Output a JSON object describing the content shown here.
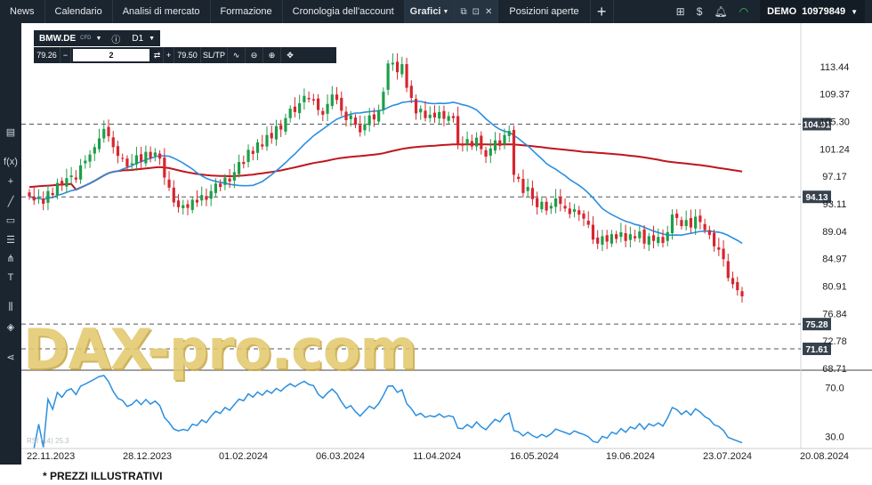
{
  "nav": {
    "tabs": [
      {
        "label": "News"
      },
      {
        "label": "Calendario"
      },
      {
        "label": "Analisi di mercato"
      },
      {
        "label": "Formazione"
      },
      {
        "label": "Cronologia dell'account"
      },
      {
        "label": "Grafici"
      },
      {
        "label": "Posizioni aperte"
      }
    ],
    "account_mode": "DEMO",
    "account_number": "10979849"
  },
  "instrument": {
    "symbol": "BMW.DE",
    "type_badge": "CFD",
    "timeframe": "D1",
    "sell_price": "79.26",
    "volume": "2",
    "buy_price": "79.50",
    "sltp_label": "SL/TP"
  },
  "watermark_text": "DAX-pro.com",
  "footnote": "* PREZZI ILLUSTRATIVI",
  "chart_data": {
    "type": "candlestick",
    "symbol": "BMW.DE",
    "timeframe": "D1",
    "price_axis_ticks": [
      "113.44",
      "109.37",
      "105.30",
      "101.24",
      "97.17",
      "93.11",
      "89.04",
      "84.97",
      "80.91",
      "76.84",
      "72.78",
      "68.71"
    ],
    "ylim": [
      68.71,
      117.5
    ],
    "date_ticks": [
      "22.11.2023",
      "28.12.2023",
      "01.02.2024",
      "06.03.2024",
      "11.04.2024",
      "16.05.2024",
      "19.06.2024",
      "23.07.2024",
      "20.08.2024"
    ],
    "horizontal_levels": [
      {
        "value": 104.91,
        "label": "104.91"
      },
      {
        "value": 94.13,
        "label": "94.13"
      },
      {
        "value": 75.28,
        "label": "75.28"
      },
      {
        "value": 71.61,
        "label": "71.61"
      }
    ],
    "colors": {
      "up": "#1e9e4a",
      "down": "#d6262e",
      "ma_fast": "#2a8fe0",
      "ma_slow": "#c0161d",
      "rsi": "#2a8fe0"
    },
    "closes": [
      94.2,
      93.6,
      94.0,
      93.1,
      95.0,
      94.4,
      96.2,
      95.8,
      96.9,
      97.3,
      96.7,
      98.8,
      99.5,
      100.4,
      101.5,
      102.8,
      104.2,
      103.1,
      101.5,
      100.2,
      99.8,
      98.6,
      99.1,
      100.3,
      99.4,
      100.8,
      99.9,
      100.7,
      99.8,
      97.0,
      95.5,
      93.3,
      92.6,
      92.9,
      92.5,
      93.7,
      93.3,
      94.4,
      93.7,
      95.0,
      96.1,
      95.6,
      97.0,
      96.4,
      97.8,
      99.3,
      99.0,
      101.1,
      100.5,
      102.2,
      101.6,
      103.3,
      102.8,
      104.6,
      104.1,
      105.8,
      107.2,
      106.7,
      108.0,
      109.1,
      108.6,
      108.4,
      107.0,
      106.3,
      107.9,
      109.3,
      108.5,
      106.9,
      105.5,
      106.2,
      104.8,
      103.7,
      104.9,
      106.2,
      105.6,
      107.0,
      109.7,
      113.9,
      114.0,
      112.6,
      113.8,
      110.3,
      108.8,
      106.5,
      107.2,
      105.8,
      106.3,
      105.9,
      106.7,
      105.7,
      106.1,
      105.8,
      102.0,
      101.8,
      102.7,
      101.6,
      102.9,
      101.2,
      100.1,
      101.3,
      102.5,
      101.7,
      103.3,
      103.9,
      97.4,
      96.8,
      94.7,
      95.6,
      93.8,
      92.6,
      93.4,
      92.1,
      92.8,
      93.9,
      93.1,
      92.4,
      91.6,
      92.3,
      91.5,
      90.9,
      90.0,
      87.8,
      87.2,
      88.3,
      87.5,
      88.6,
      87.9,
      88.9,
      87.6,
      88.6,
      88.0,
      89.0,
      87.2,
      88.3,
      87.6,
      88.2,
      87.3,
      88.9,
      91.5,
      91.0,
      89.8,
      90.7,
      89.6,
      91.2,
      90.4,
      89.2,
      88.5,
      86.8,
      86.3,
      84.9,
      82.1,
      81.2,
      80.3,
      79.4
    ]
  },
  "rsi": {
    "label": "RSI (14) 25.3",
    "ticks": [
      "70.0",
      "30.0"
    ]
  }
}
